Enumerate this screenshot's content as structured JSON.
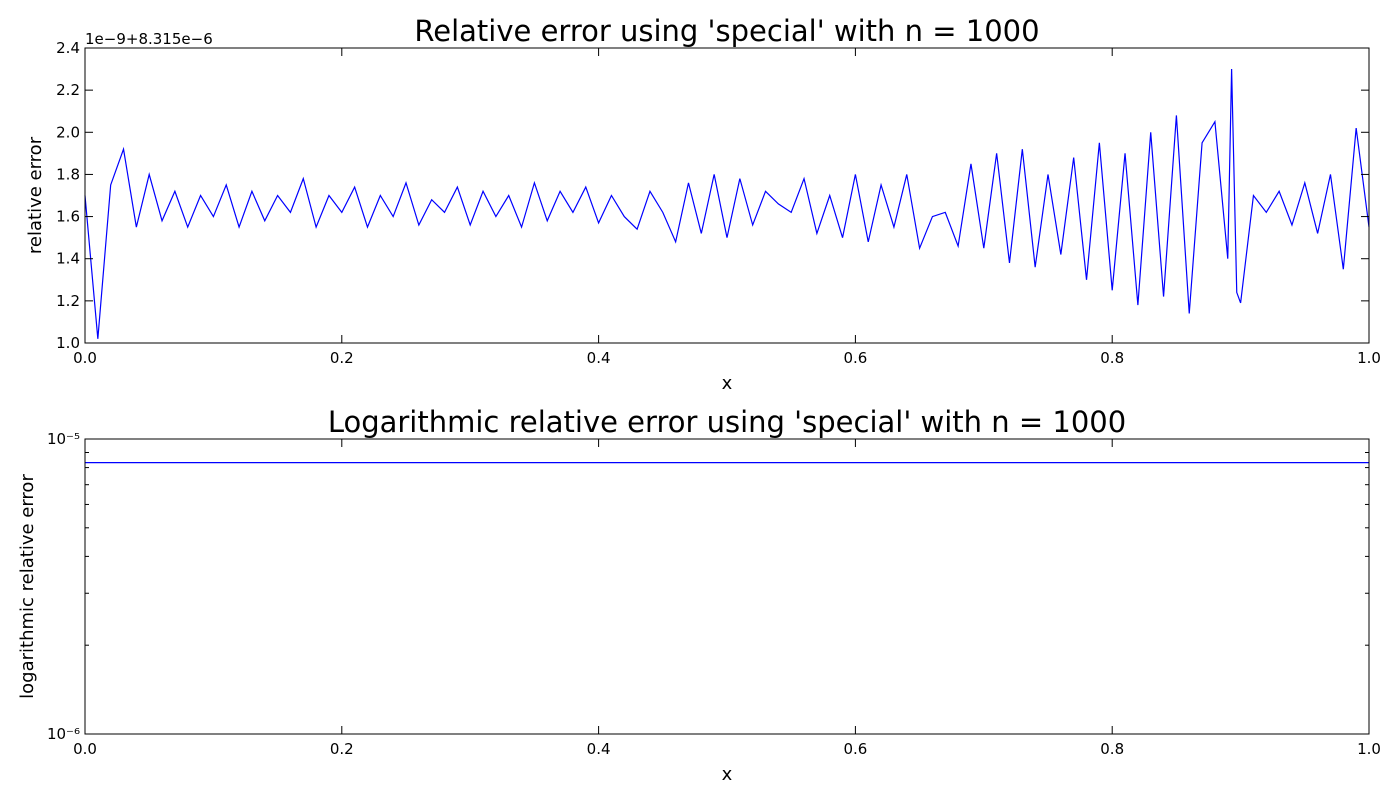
{
  "chart_data": [
    {
      "type": "line",
      "title": "Relative error using 'special' with n = 1000",
      "xlabel": "x",
      "ylabel": "relative error",
      "offset_text": "1e−9+8.315e−6",
      "color": "#0000ff",
      "xlim": [
        0,
        1
      ],
      "ylim": [
        1.0,
        2.4
      ],
      "xticks": [
        {
          "value": 0,
          "label": "0.0"
        },
        0.2,
        0.4,
        0.6,
        0.8,
        {
          "value": 1,
          "label": "1.0"
        }
      ],
      "yticks": [
        {
          "value": 1,
          "label": "1.0"
        },
        1.2,
        1.4,
        1.6,
        1.8,
        {
          "value": 2,
          "label": "2.0"
        },
        2.2,
        2.4
      ],
      "x": [
        0,
        0.01,
        0.02,
        0.03,
        0.04,
        0.05,
        0.06,
        0.07,
        0.08,
        0.09,
        0.1,
        0.11,
        0.12,
        0.13,
        0.14,
        0.15,
        0.16,
        0.17,
        0.18,
        0.19,
        0.2,
        0.21,
        0.22,
        0.23,
        0.24,
        0.25,
        0.26,
        0.27,
        0.28,
        0.29,
        0.3,
        0.31,
        0.32,
        0.33,
        0.34,
        0.35,
        0.36,
        0.37,
        0.38,
        0.39,
        0.4,
        0.41,
        0.42,
        0.43,
        0.44,
        0.45,
        0.46,
        0.47,
        0.48,
        0.49,
        0.5,
        0.51,
        0.52,
        0.53,
        0.54,
        0.55,
        0.56,
        0.57,
        0.58,
        0.59,
        0.6,
        0.61,
        0.62,
        0.63,
        0.64,
        0.65,
        0.66,
        0.67,
        0.68,
        0.69,
        0.7,
        0.71,
        0.72,
        0.73,
        0.74,
        0.75,
        0.76,
        0.77,
        0.78,
        0.79,
        0.8,
        0.81,
        0.82,
        0.83,
        0.84,
        0.85,
        0.86,
        0.87,
        0.88,
        0.89,
        0.893,
        0.897,
        0.9,
        0.91,
        0.92,
        0.93,
        0.94,
        0.95,
        0.96,
        0.97,
        0.98,
        0.99,
        1
      ],
      "values": [
        1.7,
        1.02,
        1.75,
        1.92,
        1.55,
        1.8,
        1.58,
        1.72,
        1.55,
        1.7,
        1.6,
        1.75,
        1.55,
        1.72,
        1.58,
        1.7,
        1.62,
        1.78,
        1.55,
        1.7,
        1.62,
        1.74,
        1.55,
        1.7,
        1.6,
        1.76,
        1.56,
        1.68,
        1.62,
        1.74,
        1.56,
        1.72,
        1.6,
        1.7,
        1.55,
        1.76,
        1.58,
        1.72,
        1.62,
        1.74,
        1.57,
        1.7,
        1.6,
        1.54,
        1.72,
        1.62,
        1.48,
        1.76,
        1.52,
        1.8,
        1.5,
        1.78,
        1.56,
        1.72,
        1.66,
        1.62,
        1.78,
        1.52,
        1.7,
        1.5,
        1.8,
        1.48,
        1.75,
        1.55,
        1.8,
        1.45,
        1.6,
        1.62,
        1.46,
        1.85,
        1.45,
        1.9,
        1.38,
        1.92,
        1.36,
        1.8,
        1.42,
        1.88,
        1.3,
        1.95,
        1.25,
        1.9,
        1.18,
        2.0,
        1.22,
        2.08,
        1.14,
        1.95,
        2.05,
        1.4,
        2.3,
        1.24,
        1.19,
        1.7,
        1.62,
        1.72,
        1.56,
        1.76,
        1.52,
        1.8,
        1.35,
        2.02,
        1.55
      ]
    },
    {
      "type": "line",
      "title": "Logarithmic relative error using 'special' with n = 1000",
      "xlabel": "x",
      "ylabel": "logarithmic relative error",
      "color": "#0000ff",
      "log_y": true,
      "xlim": [
        0,
        1
      ],
      "ylim": [
        1e-06,
        1e-05
      ],
      "xticks": [
        {
          "value": 0,
          "label": "0.0"
        },
        0.2,
        0.4,
        0.6,
        0.8,
        {
          "value": 1,
          "label": "1.0"
        }
      ],
      "yticks": [
        {
          "value": 1e-06,
          "label": "10⁻⁶"
        },
        {
          "value": 1e-05,
          "label": "10⁻⁵"
        }
      ],
      "minor_yticks": [
        2e-06,
        3e-06,
        4e-06,
        5e-06,
        6e-06,
        7e-06,
        8e-06,
        9e-06
      ],
      "x": [
        0,
        1
      ],
      "values": [
        8.31665e-06,
        8.31665e-06
      ]
    }
  ]
}
